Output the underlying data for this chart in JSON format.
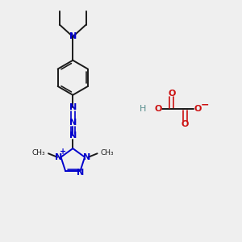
{
  "bg_color": "#efefef",
  "bond_color": "#1a1a1a",
  "blue_color": "#0000cc",
  "red_color": "#cc1111",
  "teal_color": "#5a9090",
  "figsize": [
    3.0,
    3.0
  ],
  "dpi": 100,
  "xlim": [
    0,
    10
  ],
  "ylim": [
    0,
    10
  ]
}
